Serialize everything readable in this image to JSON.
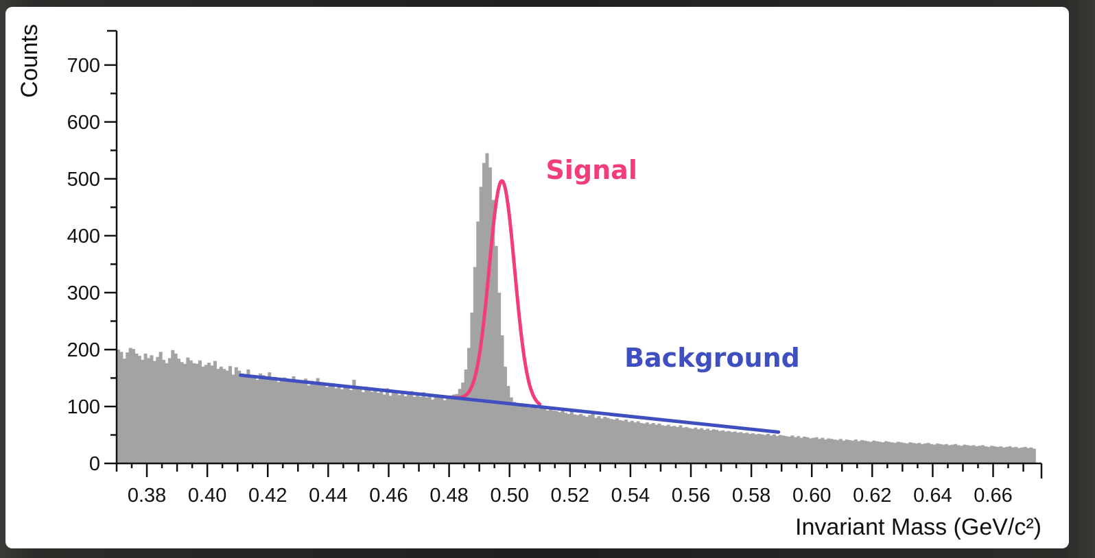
{
  "chart_data": {
    "type": "bar",
    "xlabel": "Invariant Mass (GeV/c²)",
    "ylabel": "Counts",
    "xlim": [
      0.37,
      0.676
    ],
    "ylim": [
      0,
      760
    ],
    "x_ticks": [
      "0.38",
      "0.40",
      "0.42",
      "0.44",
      "0.46",
      "0.48",
      "0.50",
      "0.52",
      "0.54",
      "0.56",
      "0.58",
      "0.60",
      "0.62",
      "0.64",
      "0.66"
    ],
    "y_ticks": [
      "0",
      "100",
      "200",
      "300",
      "400",
      "500",
      "600",
      "700"
    ],
    "histogram": {
      "bin_width": 0.001,
      "x_start": 0.37,
      "bar_color": "#a3a3a3",
      "values": [
        200,
        196,
        184,
        195,
        203,
        201,
        193,
        189,
        182,
        193,
        185,
        190,
        180,
        187,
        196,
        182,
        176,
        185,
        199,
        193,
        184,
        178,
        175,
        186,
        181,
        176,
        175,
        181,
        170,
        173,
        177,
        172,
        180,
        166,
        170,
        166,
        163,
        171,
        156,
        169,
        163,
        158,
        154,
        165,
        156,
        153,
        147,
        158,
        155,
        150,
        160,
        148,
        152,
        143,
        149,
        151,
        148,
        145,
        153,
        144,
        146,
        141,
        149,
        137,
        145,
        143,
        150,
        139,
        140,
        134,
        138,
        141,
        132,
        139,
        130,
        133,
        137,
        129,
        147,
        131,
        134,
        125,
        135,
        129,
        126,
        128,
        124,
        131,
        121,
        132,
        119,
        126,
        128,
        120,
        124,
        118,
        122,
        127,
        117,
        120,
        117,
        125,
        116,
        121,
        112,
        119,
        120,
        117,
        111,
        116,
        119,
        121,
        122,
        131,
        142,
        165,
        203,
        265,
        345,
        425,
        486,
        528,
        545,
        520,
        463,
        382,
        300,
        225,
        170,
        136,
        116,
        108,
        106,
        103,
        100,
        104,
        98,
        101,
        99,
        96,
        102,
        96,
        93,
        97,
        93,
        92,
        90,
        94,
        89,
        87,
        91,
        86,
        85,
        87,
        84,
        82,
        85,
        92,
        80,
        83,
        79,
        82,
        80,
        78,
        77,
        79,
        76,
        75,
        77,
        73,
        75,
        72,
        74,
        71,
        70,
        72,
        69,
        71,
        68,
        70,
        67,
        66,
        68,
        65,
        66,
        64,
        67,
        63,
        64,
        62,
        61,
        63,
        60,
        62,
        59,
        61,
        58,
        60,
        59,
        57,
        58,
        56,
        57,
        55,
        56,
        54,
        55,
        53,
        54,
        52,
        53,
        51,
        52,
        51,
        50,
        52,
        49,
        51,
        48,
        50,
        49,
        48,
        47,
        49,
        46,
        48,
        45,
        47,
        46,
        44,
        45,
        46,
        43,
        45,
        42,
        44,
        43,
        42,
        41,
        43,
        40,
        42,
        41,
        40,
        42,
        39,
        41,
        40,
        39,
        38,
        40,
        39,
        38,
        37,
        39,
        38,
        37,
        36,
        38,
        37,
        36,
        35,
        37,
        36,
        35,
        36,
        34,
        35,
        36,
        34,
        33,
        35,
        34,
        33,
        34,
        32,
        33,
        34,
        32,
        31,
        33,
        32,
        31,
        32,
        30,
        31,
        32,
        30,
        29,
        31,
        30,
        29,
        30,
        28,
        29,
        30,
        28,
        29,
        27,
        28,
        29,
        27,
        28,
        26
      ]
    },
    "series": [
      {
        "name": "Signal",
        "type": "gaussian-fit",
        "color": "#f23d7a",
        "mean": 0.4975,
        "sigma": 0.0042,
        "amplitude": 390,
        "x_range": [
          0.48,
          0.51
        ]
      },
      {
        "name": "Background",
        "type": "linear-fit",
        "color": "#3f4fbf",
        "x": [
          0.411,
          0.589
        ],
        "y": [
          155,
          55
        ]
      }
    ],
    "annotations": [
      {
        "text": "Signal",
        "x": 0.512,
        "y": 500,
        "color": "#f23d7a"
      },
      {
        "text": "Background",
        "x": 0.538,
        "y": 170,
        "color": "#3f4fbf"
      }
    ],
    "grid": false,
    "legend": "none"
  }
}
